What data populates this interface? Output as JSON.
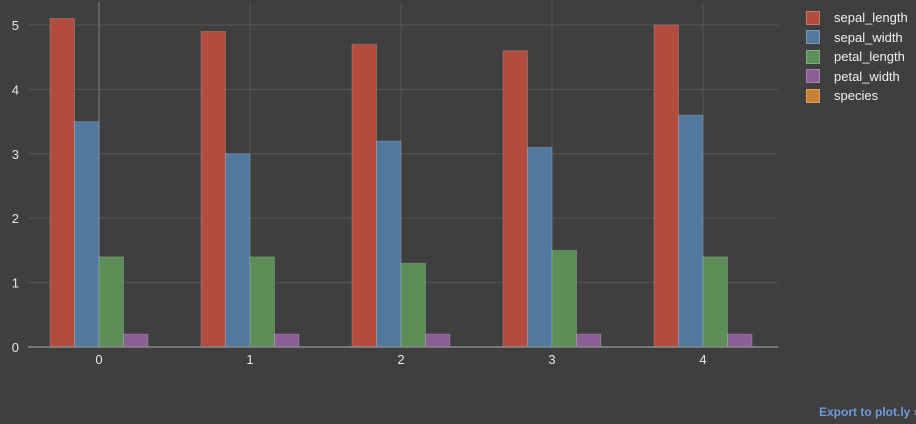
{
  "chart_data": {
    "type": "bar",
    "title": "",
    "xlabel": "",
    "ylabel": "",
    "categories": [
      "0",
      "1",
      "2",
      "3",
      "4"
    ],
    "series": [
      {
        "name": "sepal_length",
        "color": "#b24c3e",
        "values": [
          5.1,
          4.9,
          4.7,
          4.6,
          5.0
        ]
      },
      {
        "name": "sepal_width",
        "color": "#51789e",
        "values": [
          3.5,
          3.0,
          3.2,
          3.1,
          3.6
        ]
      },
      {
        "name": "petal_length",
        "color": "#5c8f58",
        "values": [
          1.4,
          1.4,
          1.3,
          1.5,
          1.4
        ]
      },
      {
        "name": "petal_width",
        "color": "#8a5f95",
        "values": [
          0.2,
          0.2,
          0.2,
          0.2,
          0.2
        ]
      },
      {
        "name": "species",
        "color": "#c98133",
        "values": [
          null,
          null,
          null,
          null,
          null
        ]
      }
    ],
    "ylim": [
      0,
      5.35
    ],
    "yticks": [
      0,
      1,
      2,
      3,
      4,
      5
    ],
    "grid": true,
    "legend_position": "right",
    "background": "#3f3f3f"
  },
  "legend": {
    "items": [
      {
        "label": "sepal_length",
        "color": "#b24c3e"
      },
      {
        "label": "sepal_width",
        "color": "#51789e"
      },
      {
        "label": "petal_length",
        "color": "#5c8f58"
      },
      {
        "label": "petal_width",
        "color": "#8a5f95"
      },
      {
        "label": "species",
        "color": "#c98133"
      }
    ]
  },
  "footer": {
    "export_link": "Export to plot.ly »"
  }
}
